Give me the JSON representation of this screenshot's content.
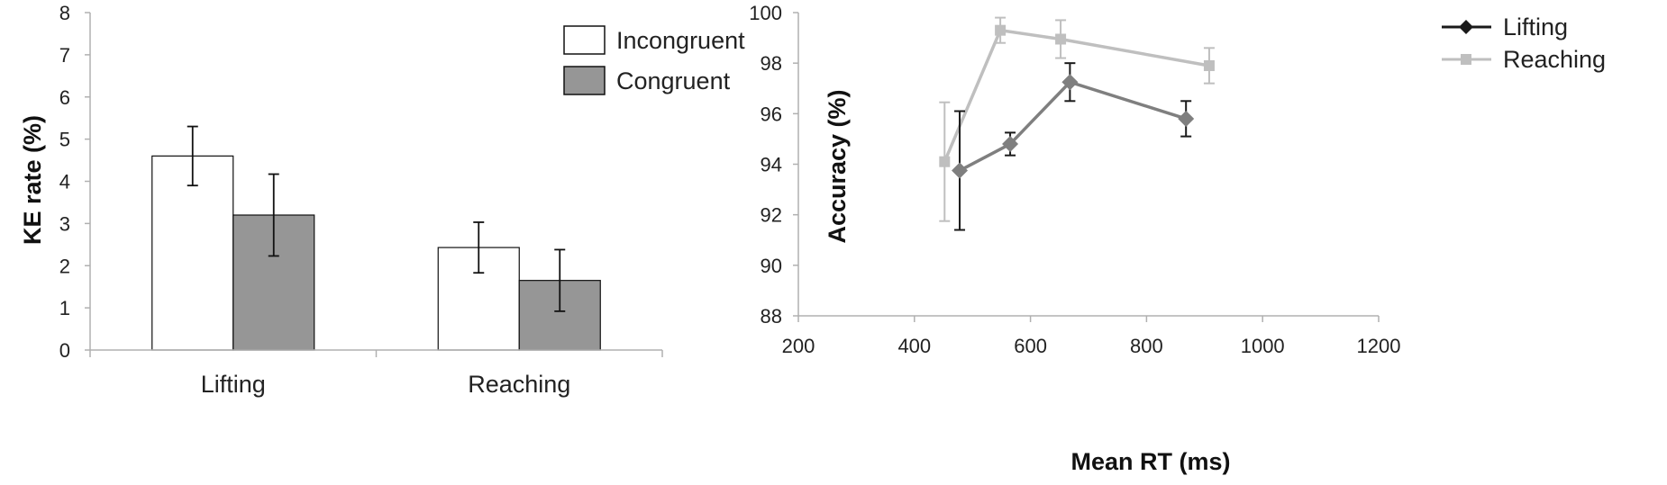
{
  "chart_data": [
    {
      "type": "bar",
      "title": "",
      "ylabel": "KE rate (%)",
      "xlabel": "",
      "ylim": [
        0,
        8
      ],
      "yticks": [
        "0",
        "1",
        "2",
        "3",
        "4",
        "5",
        "6",
        "7",
        "8"
      ],
      "categories": [
        "Lifting",
        "Reaching"
      ],
      "legend_position": "top-right",
      "series": [
        {
          "name": "Incongruent",
          "color": "#ffffff",
          "values": [
            4.6,
            2.43
          ],
          "error": [
            0.7,
            0.6
          ]
        },
        {
          "name": "Congruent",
          "color": "#969696",
          "values": [
            3.2,
            1.65
          ],
          "error": [
            0.97,
            0.73
          ]
        }
      ]
    },
    {
      "type": "line",
      "title": "",
      "xlabel": "Mean RT (ms)",
      "ylabel": "Accuracy (%)",
      "xlim": [
        200,
        1200
      ],
      "ylim": [
        88,
        100
      ],
      "xticks": [
        "200",
        "400",
        "600",
        "800",
        "1000",
        "1200"
      ],
      "yticks": [
        "88",
        "90",
        "92",
        "94",
        "96",
        "98",
        "100"
      ],
      "legend_position": "top-right",
      "series": [
        {
          "name": "Lifting",
          "color": "#7f7f7f",
          "legend_color": "#1a1a1a",
          "marker": "diamond",
          "x": [
            478,
            565,
            668,
            868
          ],
          "y": [
            93.75,
            94.8,
            97.25,
            95.8
          ],
          "error": [
            2.35,
            0.45,
            0.75,
            0.7
          ]
        },
        {
          "name": "Reaching",
          "color": "#bfbfbf",
          "legend_color": "#bfbfbf",
          "marker": "square",
          "x": [
            452,
            548,
            652,
            908
          ],
          "y": [
            94.1,
            99.3,
            98.95,
            97.9
          ],
          "error": [
            2.35,
            0.5,
            0.75,
            0.7
          ]
        }
      ]
    }
  ]
}
